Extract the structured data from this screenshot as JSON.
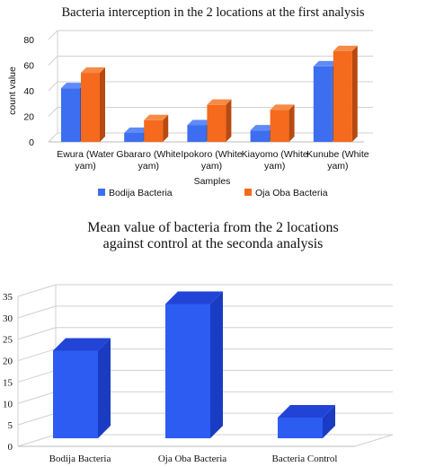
{
  "colors": {
    "bodija_front": "#3d6ef0",
    "bodija_side": "#2a4fb8",
    "bodija_top": "#5f8bf5",
    "oja_front": "#f56a1d",
    "oja_side": "#b84a10",
    "oja_top": "#f78a45",
    "mean_front": "#2d5cf2",
    "mean_side": "#1a3cc2",
    "mean_top": "#2244d6",
    "grid": "#d0d0d0"
  },
  "chart_data": [
    {
      "type": "bar",
      "title": "Bacteria interception in the 2 locations at the first analysis",
      "xlabel": "Samples",
      "ylabel": "count value",
      "ylim": [
        0,
        80
      ],
      "yticks": [
        "0",
        "20",
        "40",
        "60",
        "80"
      ],
      "categories": [
        [
          "Ewura (Water",
          "yam)"
        ],
        [
          "Gbararo (White",
          "yam)"
        ],
        [
          "Ipokoro (White",
          "yam)"
        ],
        [
          "Kiayomo (White",
          "yam)"
        ],
        [
          "Kunube (White",
          "yam)"
        ]
      ],
      "series": [
        {
          "name": "Bodija Bacteria",
          "values": [
            42,
            7,
            13,
            9,
            59
          ]
        },
        {
          "name": "Oja Oba Bacteria",
          "values": [
            54,
            17,
            29,
            25,
            71
          ]
        }
      ],
      "legend": "bottom",
      "grid": true
    },
    {
      "type": "bar",
      "title": [
        "Mean value of bacteria from the 2 locations",
        "against control at the seconda analysis"
      ],
      "ylim": [
        0,
        35
      ],
      "yticks": [
        "0",
        "5",
        "10",
        "15",
        "20",
        "25",
        "30",
        "35"
      ],
      "categories": [
        "Bodija Bacteria",
        "Oja Oba Bacteria",
        "Bacteria Control"
      ],
      "values": [
        21.2,
        32.5,
        5
      ],
      "grid": true
    }
  ]
}
